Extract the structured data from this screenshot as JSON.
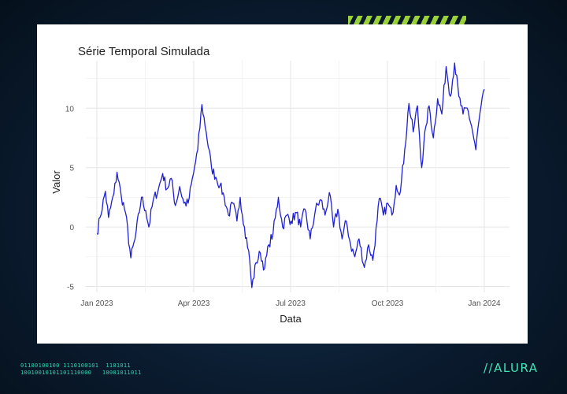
{
  "background": {
    "binary_lines": [
      "01100100100 1110100101  1101011",
      "10010010101101110000   10001011011"
    ],
    "brand": "//ALURA",
    "accent_color": "#9ad13a",
    "brand_color": "#3ee6b9"
  },
  "chart_data": {
    "type": "line",
    "title": "Série Temporal Simulada",
    "xlabel": "Data",
    "ylabel": "Valor",
    "line_color": "#1f1fd6",
    "grid": true,
    "ylim": [
      -5.5,
      14
    ],
    "y_ticks": [
      -5,
      0,
      5,
      10
    ],
    "x_ticks": [
      "Jan 2023",
      "Apr 2023",
      "Jul 2023",
      "Oct 2023",
      "Jan 2024"
    ],
    "x_range": [
      "2023-01-01",
      "2024-01-01"
    ],
    "series": [
      {
        "name": "",
        "anchors": [
          [
            "2023-01-01",
            -0.6
          ],
          [
            "2023-01-04",
            0.8
          ],
          [
            "2023-01-09",
            3.0
          ],
          [
            "2023-01-12",
            0.8
          ],
          [
            "2023-01-17",
            2.8
          ],
          [
            "2023-01-20",
            4.6
          ],
          [
            "2023-01-24",
            2.6
          ],
          [
            "2023-01-28",
            1.2
          ],
          [
            "2023-02-02",
            -2.6
          ],
          [
            "2023-02-06",
            -1.0
          ],
          [
            "2023-02-12",
            2.5
          ],
          [
            "2023-02-16",
            1.4
          ],
          [
            "2023-02-19",
            0.0
          ],
          [
            "2023-02-23",
            2.2
          ],
          [
            "2023-02-28",
            3.2
          ],
          [
            "2023-03-04",
            4.5
          ],
          [
            "2023-03-08",
            3.2
          ],
          [
            "2023-03-12",
            4.1
          ],
          [
            "2023-03-16",
            1.8
          ],
          [
            "2023-03-20",
            3.4
          ],
          [
            "2023-03-24",
            2.0
          ],
          [
            "2023-03-28",
            2.0
          ],
          [
            "2023-04-02",
            4.5
          ],
          [
            "2023-04-06",
            6.5
          ],
          [
            "2023-04-10",
            10.3
          ],
          [
            "2023-04-14",
            8.0
          ],
          [
            "2023-04-19",
            5.0
          ],
          [
            "2023-04-23",
            4.2
          ],
          [
            "2023-04-27",
            3.5
          ],
          [
            "2023-05-01",
            2.5
          ],
          [
            "2023-05-05",
            1.0
          ],
          [
            "2023-05-09",
            2.0
          ],
          [
            "2023-05-13",
            0.5
          ],
          [
            "2023-05-16",
            2.5
          ],
          [
            "2023-05-20",
            0.0
          ],
          [
            "2023-05-24",
            -2.0
          ],
          [
            "2023-05-27",
            -5.1
          ],
          [
            "2023-05-31",
            -3.0
          ],
          [
            "2023-06-04",
            -2.2
          ],
          [
            "2023-06-08",
            -3.5
          ],
          [
            "2023-06-12",
            -1.5
          ],
          [
            "2023-06-16",
            -0.5
          ],
          [
            "2023-06-21",
            2.5
          ],
          [
            "2023-06-25",
            0.0
          ],
          [
            "2023-06-29",
            1.0
          ],
          [
            "2023-07-03",
            0.5
          ],
          [
            "2023-07-08",
            1.2
          ],
          [
            "2023-07-12",
            0.0
          ],
          [
            "2023-07-16",
            1.5
          ],
          [
            "2023-07-21",
            -1.0
          ],
          [
            "2023-07-26",
            1.5
          ],
          [
            "2023-07-31",
            2.3
          ],
          [
            "2023-08-04",
            1.0
          ],
          [
            "2023-08-08",
            2.9
          ],
          [
            "2023-08-12",
            0.0
          ],
          [
            "2023-08-16",
            1.5
          ],
          [
            "2023-08-20",
            -1.0
          ],
          [
            "2023-08-24",
            0.5
          ],
          [
            "2023-08-28",
            -1.5
          ],
          [
            "2023-09-01",
            -2.5
          ],
          [
            "2023-09-05",
            -1.0
          ],
          [
            "2023-09-10",
            -3.4
          ],
          [
            "2023-09-14",
            -1.5
          ],
          [
            "2023-09-18",
            -2.8
          ],
          [
            "2023-09-22",
            0.5
          ],
          [
            "2023-09-24",
            2.4
          ],
          [
            "2023-09-28",
            1.0
          ],
          [
            "2023-10-02",
            2.0
          ],
          [
            "2023-10-06",
            1.0
          ],
          [
            "2023-10-10",
            3.5
          ],
          [
            "2023-10-14",
            3.0
          ],
          [
            "2023-10-18",
            6.5
          ],
          [
            "2023-10-22",
            10.4
          ],
          [
            "2023-10-26",
            8.0
          ],
          [
            "2023-10-30",
            10.2
          ],
          [
            "2023-11-03",
            5.0
          ],
          [
            "2023-11-07",
            8.5
          ],
          [
            "2023-11-10",
            10.2
          ],
          [
            "2023-11-14",
            7.5
          ],
          [
            "2023-11-18",
            10.8
          ],
          [
            "2023-11-22",
            9.5
          ],
          [
            "2023-11-26",
            13.5
          ],
          [
            "2023-11-30",
            11.0
          ],
          [
            "2023-12-04",
            13.8
          ],
          [
            "2023-12-08",
            11.0
          ],
          [
            "2023-12-12",
            9.5
          ],
          [
            "2023-12-16",
            10.0
          ],
          [
            "2023-12-20",
            8.5
          ],
          [
            "2023-12-24",
            6.5
          ],
          [
            "2023-12-27",
            9.0
          ],
          [
            "2024-01-01",
            11.6
          ]
        ]
      }
    ]
  }
}
